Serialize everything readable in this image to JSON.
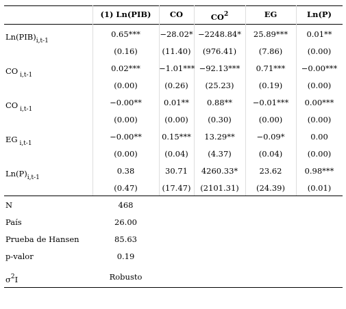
{
  "table": {
    "header": [
      {
        "text": "(1) Ln(PIB)"
      },
      {
        "text": "CO"
      },
      {
        "text": "CO",
        "sup": "2"
      },
      {
        "text": "EG"
      },
      {
        "text": "Ln(P)"
      }
    ],
    "rows": [
      {
        "label": {
          "text": "Ln(PIB)",
          "sub": "i,t-1"
        },
        "coef": [
          "0.65***",
          "−28.02*",
          "−2248.84*",
          "25.89***",
          "0.01**"
        ],
        "se": [
          "(0.16)",
          "(11.40)",
          "(976.41)",
          "(7.86)",
          "(0.00)"
        ]
      },
      {
        "label": {
          "text": "CO",
          "sub": " i,t-1"
        },
        "coef": [
          "0.02***",
          "−1.01***",
          "−92.13***",
          "0.71***",
          "−0.00***"
        ],
        "se": [
          "(0.00)",
          "(0.26)",
          "(25.23)",
          "(0.19)",
          "(0.00)"
        ]
      },
      {
        "label": {
          "text": "CO",
          "sub": " i,t-1"
        },
        "coef": [
          "−0.00**",
          "0.01**",
          "0.88**",
          "−0.01***",
          "0.00***"
        ],
        "se": [
          "(0.00)",
          "(0.00)",
          "(0.30)",
          "(0.00)",
          "(0.00)"
        ]
      },
      {
        "label": {
          "text": "EG",
          "sub": " i,t-1"
        },
        "coef": [
          "−0.00**",
          "0.15***",
          "13.29**",
          "−0.09*",
          "0.00"
        ],
        "se": [
          "(0.00)",
          "(0.04)",
          "(4.37)",
          "(0.04)",
          "(0.00)"
        ]
      },
      {
        "label": {
          "text": "Ln(P)",
          "sub": "i,t-1"
        },
        "coef": [
          "0.38",
          "30.71",
          "4260.33*",
          "23.62",
          "0.98***"
        ],
        "se": [
          "(0.47)",
          "(17.47)",
          "(2101.31)",
          "(24.39)",
          "(0.01)"
        ]
      }
    ],
    "stats": [
      {
        "label": {
          "text": "N"
        },
        "value": "468"
      },
      {
        "label": {
          "text": "País"
        },
        "value": "26.00"
      },
      {
        "label": {
          "text": "Prueba de Hansen"
        },
        "value": "85.63"
      },
      {
        "label": {
          "text": "p-valor"
        },
        "value": "0.19"
      },
      {
        "label": {
          "text": "σ",
          "sup": "2",
          "after": "I"
        },
        "value": "Robusto"
      }
    ]
  }
}
